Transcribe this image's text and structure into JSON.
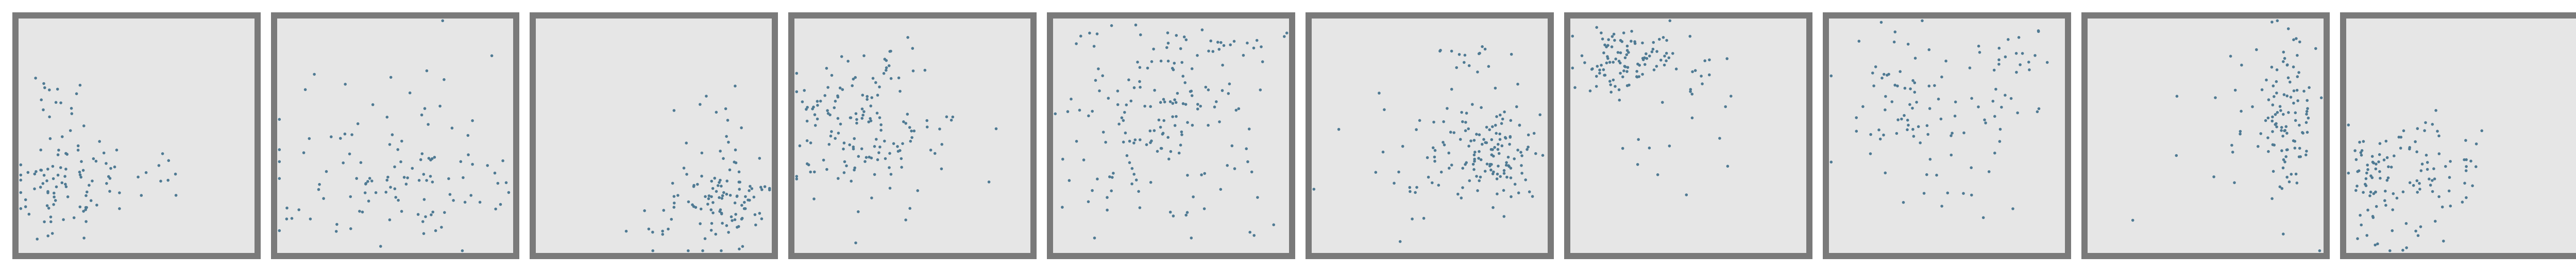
{
  "chart_data": {
    "type": "scatter",
    "colors": {
      "point": "#4f7a93",
      "panel_bg": "#e6e6e6",
      "panel_border": "#7a7a7a"
    },
    "panels": [
      {
        "xlim": [
          0,
          1
        ],
        "ylim": [
          0,
          1
        ],
        "clusters": [
          {
            "cx": 0.18,
            "cy": 0.32,
            "sx": 0.12,
            "sy": 0.14,
            "n": 95
          },
          {
            "cx": 0.6,
            "cy": 0.3,
            "sx": 0.06,
            "sy": 0.12,
            "n": 10
          },
          {
            "cx": 0.12,
            "cy": 0.72,
            "sx": 0.05,
            "sy": 0.05,
            "n": 8
          }
        ]
      },
      {
        "xlim": [
          0,
          1
        ],
        "ylim": [
          0,
          1
        ],
        "clusters": [
          {
            "cx": 0.45,
            "cy": 0.3,
            "sx": 0.26,
            "sy": 0.14,
            "n": 105
          },
          {
            "cx": 0.55,
            "cy": 0.68,
            "sx": 0.22,
            "sy": 0.12,
            "n": 12
          }
        ]
      },
      {
        "xlim": [
          0,
          1
        ],
        "ylim": [
          0,
          1
        ],
        "clusters": [
          {
            "cx": 0.82,
            "cy": 0.2,
            "sx": 0.09,
            "sy": 0.09,
            "n": 75
          },
          {
            "cx": 0.55,
            "cy": 0.15,
            "sx": 0.14,
            "sy": 0.08,
            "n": 20
          },
          {
            "cx": 0.78,
            "cy": 0.5,
            "sx": 0.1,
            "sy": 0.14,
            "n": 25
          }
        ]
      },
      {
        "xlim": [
          0,
          1
        ],
        "ylim": [
          0,
          1
        ],
        "clusters": [
          {
            "cx": 0.25,
            "cy": 0.55,
            "sx": 0.14,
            "sy": 0.16,
            "n": 120
          },
          {
            "cx": 0.55,
            "cy": 0.45,
            "sx": 0.18,
            "sy": 0.15,
            "n": 25
          },
          {
            "cx": 0.4,
            "cy": 0.82,
            "sx": 0.15,
            "sy": 0.06,
            "n": 12
          }
        ]
      },
      {
        "xlim": [
          0,
          1
        ],
        "ylim": [
          0,
          1
        ],
        "clusters": [
          {
            "cx": 0.45,
            "cy": 0.58,
            "sx": 0.22,
            "sy": 0.2,
            "n": 140
          },
          {
            "cx": 0.55,
            "cy": 0.88,
            "sx": 0.2,
            "sy": 0.05,
            "n": 30
          },
          {
            "cx": 0.5,
            "cy": 0.15,
            "sx": 0.2,
            "sy": 0.07,
            "n": 12
          }
        ]
      },
      {
        "xlim": [
          0,
          1
        ],
        "ylim": [
          0,
          1
        ],
        "clusters": [
          {
            "cx": 0.78,
            "cy": 0.45,
            "sx": 0.1,
            "sy": 0.12,
            "n": 115
          },
          {
            "cx": 0.55,
            "cy": 0.45,
            "sx": 0.12,
            "sy": 0.15,
            "n": 35
          },
          {
            "cx": 0.65,
            "cy": 0.85,
            "sx": 0.1,
            "sy": 0.06,
            "n": 12
          },
          {
            "cx": 0.3,
            "cy": 0.3,
            "sx": 0.15,
            "sy": 0.15,
            "n": 8
          }
        ]
      },
      {
        "xlim": [
          0,
          1
        ],
        "ylim": [
          0,
          1
        ],
        "clusters": [
          {
            "cx": 0.22,
            "cy": 0.82,
            "sx": 0.1,
            "sy": 0.07,
            "n": 90
          },
          {
            "cx": 0.45,
            "cy": 0.8,
            "sx": 0.12,
            "sy": 0.09,
            "n": 25
          },
          {
            "cx": 0.5,
            "cy": 0.45,
            "sx": 0.2,
            "sy": 0.12,
            "n": 10
          }
        ]
      },
      {
        "xlim": [
          0,
          1
        ],
        "ylim": [
          0,
          1
        ],
        "clusters": [
          {
            "cx": 0.3,
            "cy": 0.65,
            "sx": 0.12,
            "sy": 0.16,
            "n": 55
          },
          {
            "cx": 0.6,
            "cy": 0.55,
            "sx": 0.16,
            "sy": 0.18,
            "n": 45
          },
          {
            "cx": 0.8,
            "cy": 0.85,
            "sx": 0.08,
            "sy": 0.06,
            "n": 15
          }
        ]
      },
      {
        "xlim": [
          0,
          1
        ],
        "ylim": [
          0,
          1
        ],
        "clusters": [
          {
            "cx": 0.85,
            "cy": 0.55,
            "sx": 0.06,
            "sy": 0.2,
            "n": 100
          },
          {
            "cx": 0.65,
            "cy": 0.65,
            "sx": 0.08,
            "sy": 0.14,
            "n": 15
          },
          {
            "cx": 0.4,
            "cy": 0.6,
            "sx": 0.18,
            "sy": 0.18,
            "n": 4
          }
        ]
      },
      {
        "xlim": [
          0,
          1
        ],
        "ylim": [
          0,
          1
        ],
        "clusters": [
          {
            "cx": 0.12,
            "cy": 0.3,
            "sx": 0.06,
            "sy": 0.15,
            "n": 55
          },
          {
            "cx": 0.3,
            "cy": 0.3,
            "sx": 0.14,
            "sy": 0.14,
            "n": 55
          },
          {
            "cx": 0.45,
            "cy": 0.45,
            "sx": 0.1,
            "sy": 0.1,
            "n": 15
          }
        ]
      }
    ]
  }
}
